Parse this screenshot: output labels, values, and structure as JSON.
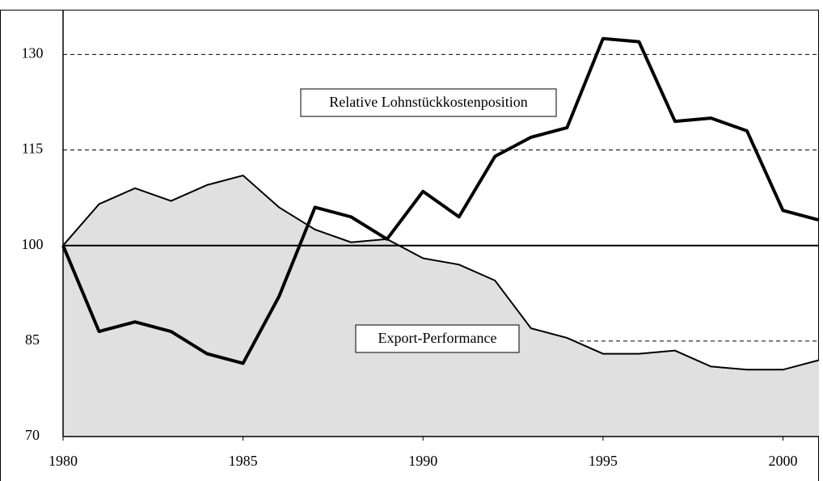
{
  "chart_data": {
    "type": "area_line",
    "x": [
      1980,
      1981,
      1982,
      1983,
      1984,
      1985,
      1986,
      1987,
      1988,
      1989,
      1990,
      1991,
      1992,
      1993,
      1994,
      1995,
      1996,
      1997,
      1998,
      1999,
      2000,
      2001
    ],
    "series": [
      {
        "name": "Relative Lohnstückkostenposition",
        "color": "#000000",
        "style": "line",
        "values": [
          100,
          86.5,
          88,
          86.5,
          83,
          81.5,
          92,
          106,
          104.5,
          101,
          108.5,
          104.5,
          114,
          117,
          118.5,
          132.5,
          132,
          119.5,
          120,
          118,
          105.5,
          104
        ]
      },
      {
        "name": "Export-Performance",
        "color": "#000000",
        "fill": "#e0e0e0",
        "style": "area",
        "values": [
          100,
          106.5,
          109,
          107,
          109.5,
          111,
          106,
          102.5,
          100.5,
          101,
          98,
          97,
          94.5,
          87,
          85.5,
          83,
          83,
          83.5,
          81,
          80.5,
          80.5,
          82
        ]
      }
    ],
    "xlim": [
      1980,
      2001
    ],
    "xticks": [
      1980,
      1985,
      1990,
      1995,
      2000
    ],
    "ylim": [
      70,
      135
    ],
    "yticks": [
      70,
      85,
      100,
      115,
      130
    ],
    "reference_line": 100,
    "grid": true
  }
}
